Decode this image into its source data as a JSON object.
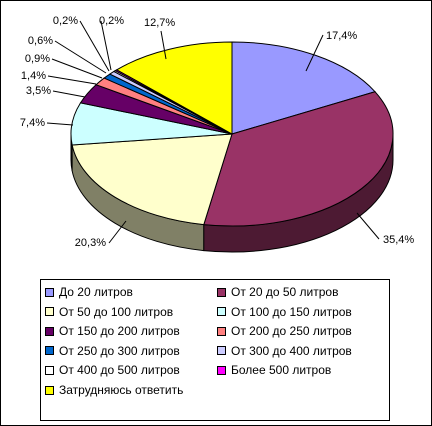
{
  "chart_data": {
    "type": "pie",
    "title": "",
    "series": [
      {
        "label": "До 20 литров",
        "value": 17.4,
        "value_label": "17,4%",
        "color": "#9999ff"
      },
      {
        "label": "От 20 до 50 литров",
        "value": 35.4,
        "value_label": "35,4%",
        "color": "#993366"
      },
      {
        "label": "От 50 до 100 литров",
        "value": 20.3,
        "value_label": "20,3%",
        "color": "#ffffcc"
      },
      {
        "label": "От 100 до 150 литров",
        "value": 7.4,
        "value_label": "7,4%",
        "color": "#ccffff"
      },
      {
        "label": "От 150 до 200 литров",
        "value": 3.5,
        "value_label": "3,5%",
        "color": "#660066"
      },
      {
        "label": "От 200 до 250 литров",
        "value": 1.4,
        "value_label": "1,4%",
        "color": "#ff8080"
      },
      {
        "label": "От 250 до 300 литров",
        "value": 0.9,
        "value_label": "0,9%",
        "color": "#0066cc"
      },
      {
        "label": "От 300 до 400 литров",
        "value": 0.6,
        "value_label": "0,6%",
        "color": "#ccccff"
      },
      {
        "label": "От 400 до 500 литров",
        "value": 0.2,
        "value_label": "0,2%",
        "color": "#ffffff"
      },
      {
        "label": "Более 500 литров",
        "value": 0.2,
        "value_label": "0,2%",
        "color": "#ff00ff"
      },
      {
        "label": "Затрудняюсь ответить",
        "value": 12.7,
        "value_label": "12,7%",
        "color": "#ffff00"
      }
    ],
    "legend_position": "bottom",
    "three_d": true
  }
}
